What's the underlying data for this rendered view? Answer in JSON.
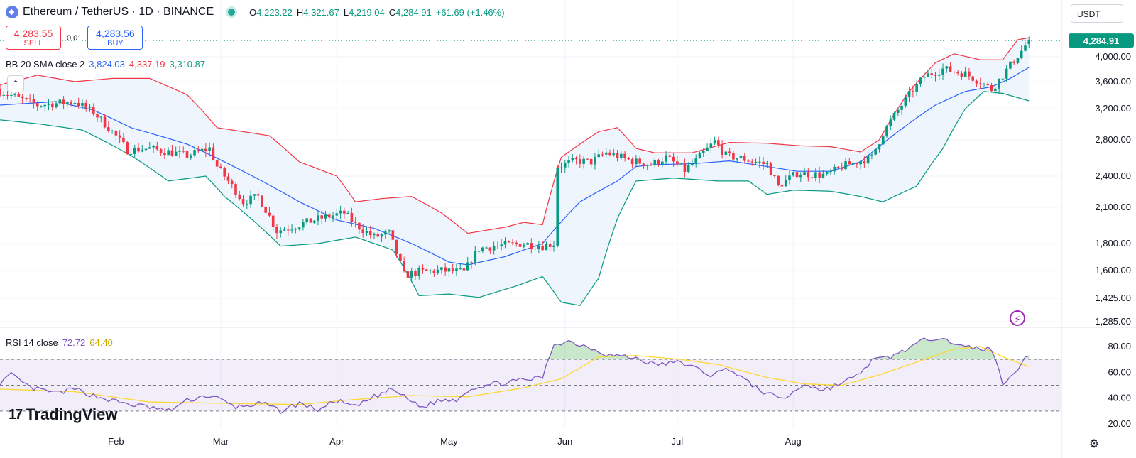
{
  "header": {
    "symbol": "Ethereum / TetherUS · 1D · BINANCE",
    "ohlc": {
      "o_label": "O",
      "o": "4,223.22",
      "h_label": "H",
      "h": "4,321.67",
      "l_label": "L",
      "l": "4,219.04",
      "c_label": "C",
      "c": "4,284.91",
      "change": "+61.69 (+1.46%)"
    }
  },
  "trade": {
    "sell_price": "4,283.55",
    "sell_label": "SELL",
    "spread": "0.01",
    "buy_price": "4,283.56",
    "buy_label": "BUY"
  },
  "indicators": {
    "bb": {
      "name": "BB 20 SMA close 2",
      "basis": "3,824.03",
      "upper": "4,337.19",
      "lower": "3,310.87"
    },
    "rsi": {
      "name": "RSI 14 close",
      "value": "72.72",
      "ma": "64.40"
    }
  },
  "currency": "USDT",
  "icons": {
    "collapse": "chevron-up-icon",
    "flash": "lightning-icon",
    "settings": "gear-icon"
  },
  "branding": {
    "mark": "17",
    "name": "TradingView"
  },
  "colors": {
    "up": "#089981",
    "down": "#f23645",
    "bb_basis": "#2962ff",
    "bb_upper": "#f23645",
    "bb_lower": "#089981",
    "bb_fill": "#e8f2fb",
    "rsi": "#7e57c2",
    "rsi_ma": "#fdd835"
  },
  "chart_data": [
    {
      "type": "candlestick",
      "title": "Ethereum / TetherUS · 1D · BINANCE",
      "scale": "log",
      "y_ticks": [
        4000,
        3600,
        3200,
        2800,
        2400,
        2100,
        1800,
        1600,
        1425,
        1285
      ],
      "y_tick_labels": [
        "4,000.00",
        "3,600.00",
        "3,200.00",
        "2,800.00",
        "2,400.00",
        "2,100.00",
        "1,800.00",
        "1,600.00",
        "1,425.00",
        "1,285.00"
      ],
      "last_price": 4284.91,
      "last_price_label": "4,284.91",
      "x_labels": [
        "Feb",
        "Mar",
        "Apr",
        "May",
        "Jun",
        "Jul",
        "Aug"
      ],
      "x_label_days": [
        31,
        59,
        90,
        120,
        151,
        181,
        212
      ],
      "close_keypoints": [
        [
          0,
          3450
        ],
        [
          10,
          3250
        ],
        [
          20,
          3300
        ],
        [
          25,
          3150
        ],
        [
          30,
          2900
        ],
        [
          34,
          2680
        ],
        [
          40,
          2700
        ],
        [
          50,
          2620
        ],
        [
          56,
          2700
        ],
        [
          58,
          2500
        ],
        [
          65,
          2150
        ],
        [
          69,
          2200
        ],
        [
          74,
          1900
        ],
        [
          80,
          1950
        ],
        [
          85,
          2000
        ],
        [
          92,
          2050
        ],
        [
          95,
          1950
        ],
        [
          100,
          1850
        ],
        [
          104,
          1880
        ],
        [
          108,
          1570
        ],
        [
          112,
          1590
        ],
        [
          118,
          1600
        ],
        [
          124,
          1590
        ],
        [
          128,
          1760
        ],
        [
          132,
          1780
        ],
        [
          140,
          1800
        ],
        [
          145,
          1780
        ],
        [
          148,
          1800
        ],
        [
          149,
          2500
        ],
        [
          154,
          2560
        ],
        [
          158,
          2550
        ],
        [
          162,
          2650
        ],
        [
          169,
          2560
        ],
        [
          174,
          2520
        ],
        [
          178,
          2600
        ],
        [
          183,
          2460
        ],
        [
          186,
          2560
        ],
        [
          191,
          2780
        ],
        [
          194,
          2620
        ],
        [
          200,
          2570
        ],
        [
          205,
          2520
        ],
        [
          208,
          2300
        ],
        [
          213,
          2430
        ],
        [
          221,
          2410
        ],
        [
          225,
          2500
        ],
        [
          233,
          2600
        ],
        [
          236,
          2880
        ],
        [
          243,
          3400
        ],
        [
          247,
          3680
        ],
        [
          252,
          3800
        ],
        [
          258,
          3720
        ],
        [
          262,
          3600
        ],
        [
          265,
          3480
        ],
        [
          268,
          3700
        ],
        [
          273,
          4100
        ],
        [
          275,
          4284.91
        ]
      ],
      "bollinger": {
        "basis_keypoints": [
          [
            0,
            3250
          ],
          [
            15,
            3300
          ],
          [
            25,
            3180
          ],
          [
            35,
            2950
          ],
          [
            50,
            2750
          ],
          [
            60,
            2550
          ],
          [
            70,
            2350
          ],
          [
            80,
            2150
          ],
          [
            90,
            1990
          ],
          [
            100,
            1920
          ],
          [
            110,
            1800
          ],
          [
            120,
            1660
          ],
          [
            125,
            1640
          ],
          [
            135,
            1700
          ],
          [
            145,
            1800
          ],
          [
            155,
            2150
          ],
          [
            165,
            2350
          ],
          [
            170,
            2500
          ],
          [
            175,
            2520
          ],
          [
            185,
            2530
          ],
          [
            195,
            2560
          ],
          [
            205,
            2500
          ],
          [
            213,
            2450
          ],
          [
            222,
            2450
          ],
          [
            230,
            2550
          ],
          [
            240,
            2900
          ],
          [
            250,
            3250
          ],
          [
            258,
            3450
          ],
          [
            265,
            3520
          ],
          [
            270,
            3650
          ],
          [
            275,
            3824.03
          ]
        ],
        "upper_keypoints": [
          [
            0,
            3550
          ],
          [
            10,
            3700
          ],
          [
            20,
            3600
          ],
          [
            30,
            3650
          ],
          [
            40,
            3650
          ],
          [
            50,
            3400
          ],
          [
            58,
            2950
          ],
          [
            65,
            2900
          ],
          [
            72,
            2850
          ],
          [
            80,
            2550
          ],
          [
            90,
            2400
          ],
          [
            95,
            2150
          ],
          [
            102,
            2180
          ],
          [
            110,
            2200
          ],
          [
            118,
            2050
          ],
          [
            125,
            1880
          ],
          [
            135,
            1930
          ],
          [
            140,
            1970
          ],
          [
            145,
            1950
          ],
          [
            150,
            2600
          ],
          [
            160,
            2900
          ],
          [
            165,
            2950
          ],
          [
            170,
            2700
          ],
          [
            175,
            2650
          ],
          [
            185,
            2650
          ],
          [
            195,
            2770
          ],
          [
            205,
            2760
          ],
          [
            214,
            2730
          ],
          [
            222,
            2720
          ],
          [
            230,
            2660
          ],
          [
            235,
            2800
          ],
          [
            243,
            3450
          ],
          [
            250,
            3900
          ],
          [
            255,
            4050
          ],
          [
            262,
            3950
          ],
          [
            268,
            3950
          ],
          [
            272,
            4300
          ],
          [
            275,
            4337.19
          ]
        ],
        "lower_keypoints": [
          [
            0,
            3050
          ],
          [
            10,
            3000
          ],
          [
            22,
            2920
          ],
          [
            35,
            2620
          ],
          [
            45,
            2350
          ],
          [
            55,
            2400
          ],
          [
            60,
            2200
          ],
          [
            75,
            1780
          ],
          [
            85,
            1800
          ],
          [
            95,
            1850
          ],
          [
            105,
            1750
          ],
          [
            112,
            1440
          ],
          [
            120,
            1450
          ],
          [
            128,
            1430
          ],
          [
            138,
            1500
          ],
          [
            145,
            1560
          ],
          [
            150,
            1400
          ],
          [
            155,
            1380
          ],
          [
            160,
            1550
          ],
          [
            165,
            2000
          ],
          [
            170,
            2350
          ],
          [
            180,
            2380
          ],
          [
            192,
            2350
          ],
          [
            200,
            2350
          ],
          [
            205,
            2220
          ],
          [
            212,
            2260
          ],
          [
            222,
            2250
          ],
          [
            230,
            2200
          ],
          [
            236,
            2150
          ],
          [
            245,
            2300
          ],
          [
            252,
            2700
          ],
          [
            258,
            3200
          ],
          [
            263,
            3450
          ],
          [
            268,
            3420
          ],
          [
            275,
            3310.87
          ]
        ]
      }
    },
    {
      "type": "line",
      "title": "RSI 14 close",
      "y_ticks": [
        80,
        60,
        40,
        20
      ],
      "y_tick_labels": [
        "80.00",
        "60.00",
        "40.00",
        "20.00"
      ],
      "bands": {
        "upper": 70,
        "middle": 50,
        "lower": 30
      },
      "rsi_keypoints": [
        [
          0,
          52
        ],
        [
          3,
          58
        ],
        [
          8,
          48
        ],
        [
          15,
          44
        ],
        [
          20,
          47
        ],
        [
          25,
          42
        ],
        [
          30,
          38
        ],
        [
          35,
          35
        ],
        [
          40,
          33
        ],
        [
          45,
          30
        ],
        [
          50,
          38
        ],
        [
          55,
          42
        ],
        [
          58,
          40
        ],
        [
          63,
          33
        ],
        [
          70,
          36
        ],
        [
          75,
          30
        ],
        [
          80,
          36
        ],
        [
          85,
          31
        ],
        [
          90,
          38
        ],
        [
          95,
          33
        ],
        [
          100,
          41
        ],
        [
          105,
          47
        ],
        [
          109,
          39
        ],
        [
          113,
          33
        ],
        [
          117,
          38
        ],
        [
          122,
          39
        ],
        [
          126,
          48
        ],
        [
          132,
          51
        ],
        [
          140,
          54
        ],
        [
          145,
          56
        ],
        [
          148,
          82
        ],
        [
          152,
          84
        ],
        [
          158,
          79
        ],
        [
          162,
          74
        ],
        [
          170,
          71
        ],
        [
          175,
          66
        ],
        [
          182,
          68
        ],
        [
          190,
          58
        ],
        [
          195,
          63
        ],
        [
          200,
          52
        ],
        [
          205,
          43
        ],
        [
          210,
          40
        ],
        [
          215,
          51
        ],
        [
          220,
          46
        ],
        [
          225,
          52
        ],
        [
          229,
          57
        ],
        [
          233,
          69
        ],
        [
          238,
          72
        ],
        [
          243,
          79
        ],
        [
          248,
          86
        ],
        [
          252,
          88
        ],
        [
          256,
          80
        ],
        [
          260,
          79
        ],
        [
          265,
          78
        ],
        [
          268,
          52
        ],
        [
          271,
          60
        ],
        [
          274,
          70
        ],
        [
          275,
          72.72
        ]
      ],
      "rsi_ma_keypoints": [
        [
          0,
          47
        ],
        [
          20,
          45
        ],
        [
          40,
          37
        ],
        [
          60,
          36
        ],
        [
          80,
          35
        ],
        [
          95,
          39
        ],
        [
          110,
          42
        ],
        [
          125,
          41
        ],
        [
          140,
          48
        ],
        [
          150,
          55
        ],
        [
          160,
          72
        ],
        [
          170,
          73
        ],
        [
          182,
          70
        ],
        [
          192,
          66
        ],
        [
          205,
          56
        ],
        [
          215,
          51
        ],
        [
          225,
          50
        ],
        [
          235,
          58
        ],
        [
          245,
          68
        ],
        [
          255,
          78
        ],
        [
          262,
          80
        ],
        [
          268,
          72
        ],
        [
          275,
          64.4
        ]
      ]
    }
  ]
}
